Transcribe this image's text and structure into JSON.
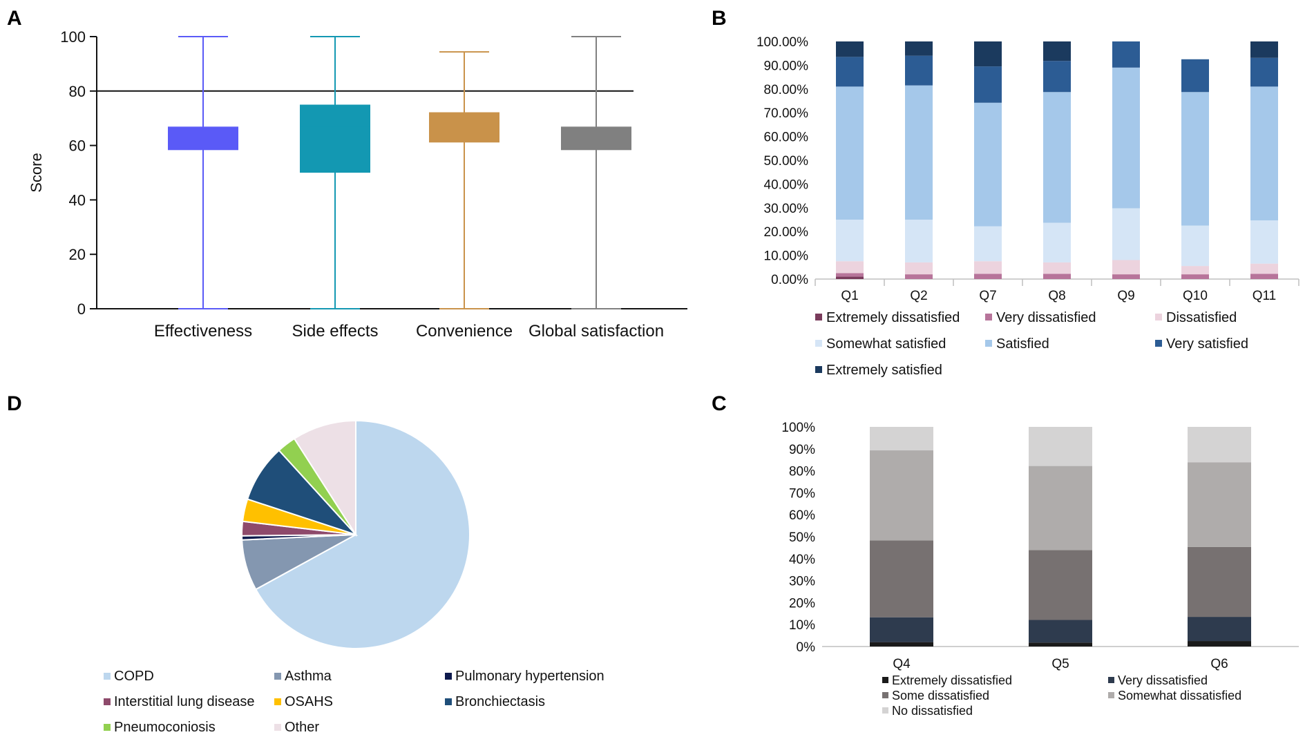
{
  "panel_letters": {
    "a": "A",
    "b": "B",
    "c": "C",
    "d": "D"
  },
  "chart_data": [
    {
      "id": "A",
      "type": "box",
      "title": "",
      "ylabel": "Score",
      "xlabel": "",
      "ylim": [
        0,
        100
      ],
      "yticks": [
        "0",
        "20",
        "40",
        "60",
        "80",
        "100"
      ],
      "reference_line": 80,
      "categories": [
        "Effectiveness",
        "Side effects",
        "Convenience",
        "Global satisfaction"
      ],
      "boxes": [
        {
          "min": 0,
          "q1": 58.3,
          "median": 66.7,
          "q3": 66.7,
          "max": 100,
          "color": "#5a5af7"
        },
        {
          "min": 0,
          "q1": 50,
          "median": 66.7,
          "q3": 75,
          "max": 100,
          "color": "#1398b2"
        },
        {
          "min": 0,
          "q1": 61.1,
          "median": 66.7,
          "q3": 72.2,
          "max": 94.4,
          "color": "#c9924a"
        },
        {
          "min": 0,
          "q1": 58.3,
          "median": 66.7,
          "q3": 66.7,
          "max": 100,
          "color": "#808080"
        }
      ]
    },
    {
      "id": "B",
      "type": "bar",
      "stacked": true,
      "categories": [
        "Q1",
        "Q2",
        "Q7",
        "Q8",
        "Q9",
        "Q10",
        "Q11"
      ],
      "ylim": [
        0,
        100
      ],
      "yticks": [
        "0.00%",
        "10.00%",
        "20.00%",
        "30.00%",
        "40.00%",
        "50.00%",
        "60.00%",
        "70.00%",
        "80.00%",
        "90.00%",
        "100.00%"
      ],
      "legend_position": "bottom",
      "series": [
        {
          "name": "Extremely dissatisfied",
          "color": "#7a3b5c",
          "values": [
            1,
            0,
            0,
            0,
            0,
            0,
            0
          ]
        },
        {
          "name": "Very dissatisfied",
          "color": "#b7749a",
          "values": [
            1.5,
            2,
            2.2,
            2.2,
            2,
            2,
            2.2
          ]
        },
        {
          "name": "Dissatisfied",
          "color": "#ecd3de",
          "values": [
            5,
            5,
            5.3,
            4.8,
            6,
            3.5,
            4.3
          ]
        },
        {
          "name": "Somewhat satisfied",
          "color": "#d5e5f6",
          "values": [
            17.5,
            18,
            14.7,
            16.7,
            21.8,
            17,
            18.2
          ]
        },
        {
          "name": "Satisfied",
          "color": "#a5c8ea",
          "values": [
            56,
            56.5,
            52,
            55,
            59.2,
            56.2,
            56.3
          ]
        },
        {
          "name": "Very satisfied",
          "color": "#2c5c94",
          "values": [
            12.5,
            12.5,
            15.3,
            13.1,
            11,
            13.8,
            12.1
          ]
        },
        {
          "name": "Extremely satisfied",
          "color": "#1b3a5e",
          "values": [
            6.5,
            6,
            10.5,
            8.2,
            0,
            0,
            6.9
          ]
        }
      ]
    },
    {
      "id": "C",
      "type": "bar",
      "stacked": true,
      "categories": [
        "Q4",
        "Q5",
        "Q6"
      ],
      "ylim": [
        0,
        100
      ],
      "yticks": [
        "0%",
        "10%",
        "20%",
        "30%",
        "40%",
        "50%",
        "60%",
        "70%",
        "80%",
        "90%",
        "100%"
      ],
      "legend_position": "bottom",
      "series": [
        {
          "name": "Extremely dissatisfied",
          "color": "#1a1a1a",
          "values": [
            2,
            1.8,
            2.5
          ]
        },
        {
          "name": "Very dissatisfied",
          "color": "#2e3b4e",
          "values": [
            11.3,
            10.3,
            11
          ]
        },
        {
          "name": "Some dissatisfied",
          "color": "#777171",
          "values": [
            35,
            31.8,
            31.8
          ]
        },
        {
          "name": "Somewhat dissatisfied",
          "color": "#afacab",
          "values": [
            41,
            38.3,
            38.6
          ]
        },
        {
          "name": "No dissatisfied",
          "color": "#d4d3d3",
          "values": [
            10.7,
            17.8,
            16.1
          ]
        }
      ]
    },
    {
      "id": "D",
      "type": "pie",
      "legend_position": "bottom",
      "slices": [
        {
          "name": "COPD",
          "color": "#bdd7ee",
          "value": 69.5
        },
        {
          "name": "Asthma",
          "color": "#8497b0",
          "value": 7.5
        },
        {
          "name": "Pulmonary hypertension",
          "color": "#0d1a4d",
          "value": 0.6
        },
        {
          "name": "Interstitial lung disease",
          "color": "#8e4a6b",
          "value": 2.1
        },
        {
          "name": "OSAHS",
          "color": "#ffc000",
          "value": 3.3
        },
        {
          "name": "Bronchiectasis",
          "color": "#1f4e79",
          "value": 8.5
        },
        {
          "name": "Pneumoconiosis",
          "color": "#92d050",
          "value": 2.8
        },
        {
          "name": "Other",
          "color": "#ede0e6",
          "value": 9.4
        }
      ]
    }
  ]
}
